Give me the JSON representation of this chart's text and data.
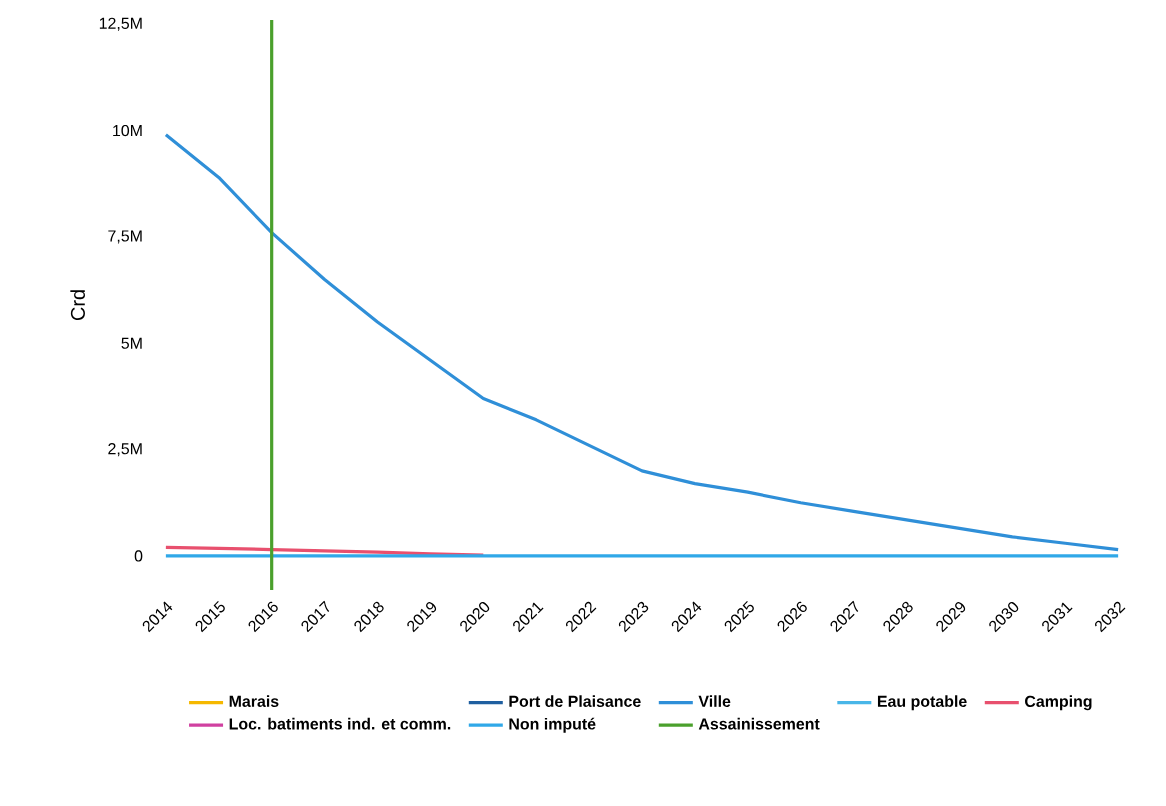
{
  "chart_data": {
    "type": "line",
    "ylabel": "Crd",
    "categories": [
      "2014",
      "2015",
      "2016",
      "2017",
      "2018",
      "2019",
      "2020",
      "2021",
      "2022",
      "2023",
      "2024",
      "2025",
      "2026",
      "2027",
      "2028",
      "2029",
      "2030",
      "2031",
      "2032"
    ],
    "series": [
      {
        "name": "Marais",
        "color": "#f5b800",
        "values": [
          null,
          null,
          null,
          null,
          null,
          null,
          null,
          null,
          null,
          null,
          null,
          null,
          null,
          null,
          null,
          null,
          null,
          null,
          null
        ]
      },
      {
        "name": "Port de Plaisance",
        "color": "#1f5fa0",
        "values": [
          null,
          null,
          null,
          null,
          null,
          null,
          null,
          null,
          null,
          null,
          null,
          null,
          null,
          null,
          null,
          null,
          null,
          null,
          null
        ]
      },
      {
        "name": "Ville",
        "color": "#2f8fd8",
        "values": [
          9900000,
          8900000,
          7600000,
          6500000,
          5500000,
          4600000,
          3700000,
          3200000,
          2600000,
          2000000,
          1700000,
          1500000,
          1250000,
          1050000,
          850000,
          650000,
          450000,
          300000,
          150000
        ]
      },
      {
        "name": "Eau potable",
        "color": "#49b6e8",
        "values": [
          null,
          null,
          null,
          null,
          null,
          null,
          null,
          null,
          null,
          null,
          null,
          null,
          null,
          null,
          null,
          null,
          null,
          null,
          null
        ]
      },
      {
        "name": "Camping",
        "color": "#e8506e",
        "values": [
          200000,
          180000,
          150000,
          120000,
          90000,
          50000,
          20000,
          null,
          null,
          null,
          null,
          null,
          null,
          null,
          null,
          null,
          null,
          null,
          null
        ]
      },
      {
        "name": "Loc. batiments ind. et comm.",
        "color": "#d040a0",
        "values": [
          null,
          null,
          null,
          null,
          null,
          null,
          null,
          null,
          null,
          null,
          null,
          null,
          null,
          null,
          null,
          null,
          null,
          null,
          null
        ]
      },
      {
        "name": "Non imputé",
        "color": "#30a8e8",
        "values": [
          0,
          0,
          0,
          0,
          0,
          0,
          0,
          0,
          0,
          0,
          0,
          0,
          0,
          0,
          0,
          0,
          0,
          0,
          0
        ]
      }
    ],
    "ref_lines": [
      {
        "axis": "x",
        "value": "2016",
        "label": "Assainissement",
        "color": "#4aa02c"
      }
    ],
    "ylim": [
      -800000,
      12600000
    ],
    "yticks": [
      0,
      {
        "value": 2500000,
        "label": "2,5M"
      },
      {
        "value": 5000000,
        "label": "5M"
      },
      {
        "value": 7500000,
        "label": "7,5M"
      },
      {
        "value": 10000000,
        "label": "10M"
      },
      {
        "value": 12500000,
        "label": "12,5M"
      }
    ],
    "legend": "bottom",
    "marker": "none",
    "line_style": "solid",
    "grid": false
  }
}
